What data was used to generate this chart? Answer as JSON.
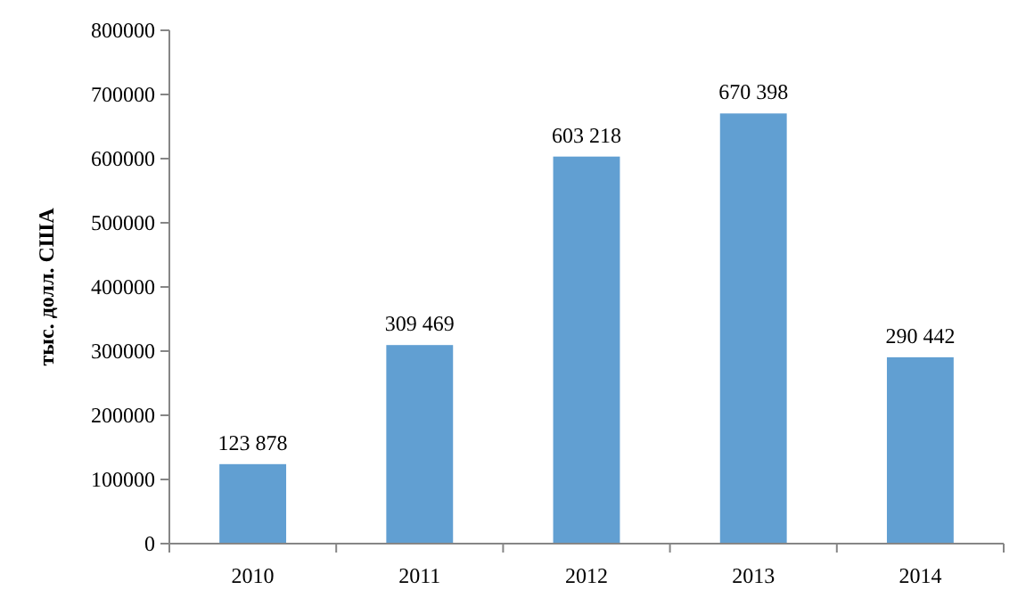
{
  "chart_data": {
    "type": "bar",
    "ylabel": "тыс. долл. США",
    "categories": [
      "2010",
      "2011",
      "2012",
      "2013",
      "2014"
    ],
    "values": [
      123878,
      309469,
      603218,
      670398,
      290442
    ],
    "value_labels": [
      "123 878",
      "309 469",
      "603 218",
      "670 398",
      "290 442"
    ],
    "color": "#619fd2",
    "ylim": [
      0,
      800000
    ],
    "yticks": [
      0,
      100000,
      200000,
      300000,
      400000,
      500000,
      600000,
      700000,
      800000
    ],
    "grid": false
  }
}
